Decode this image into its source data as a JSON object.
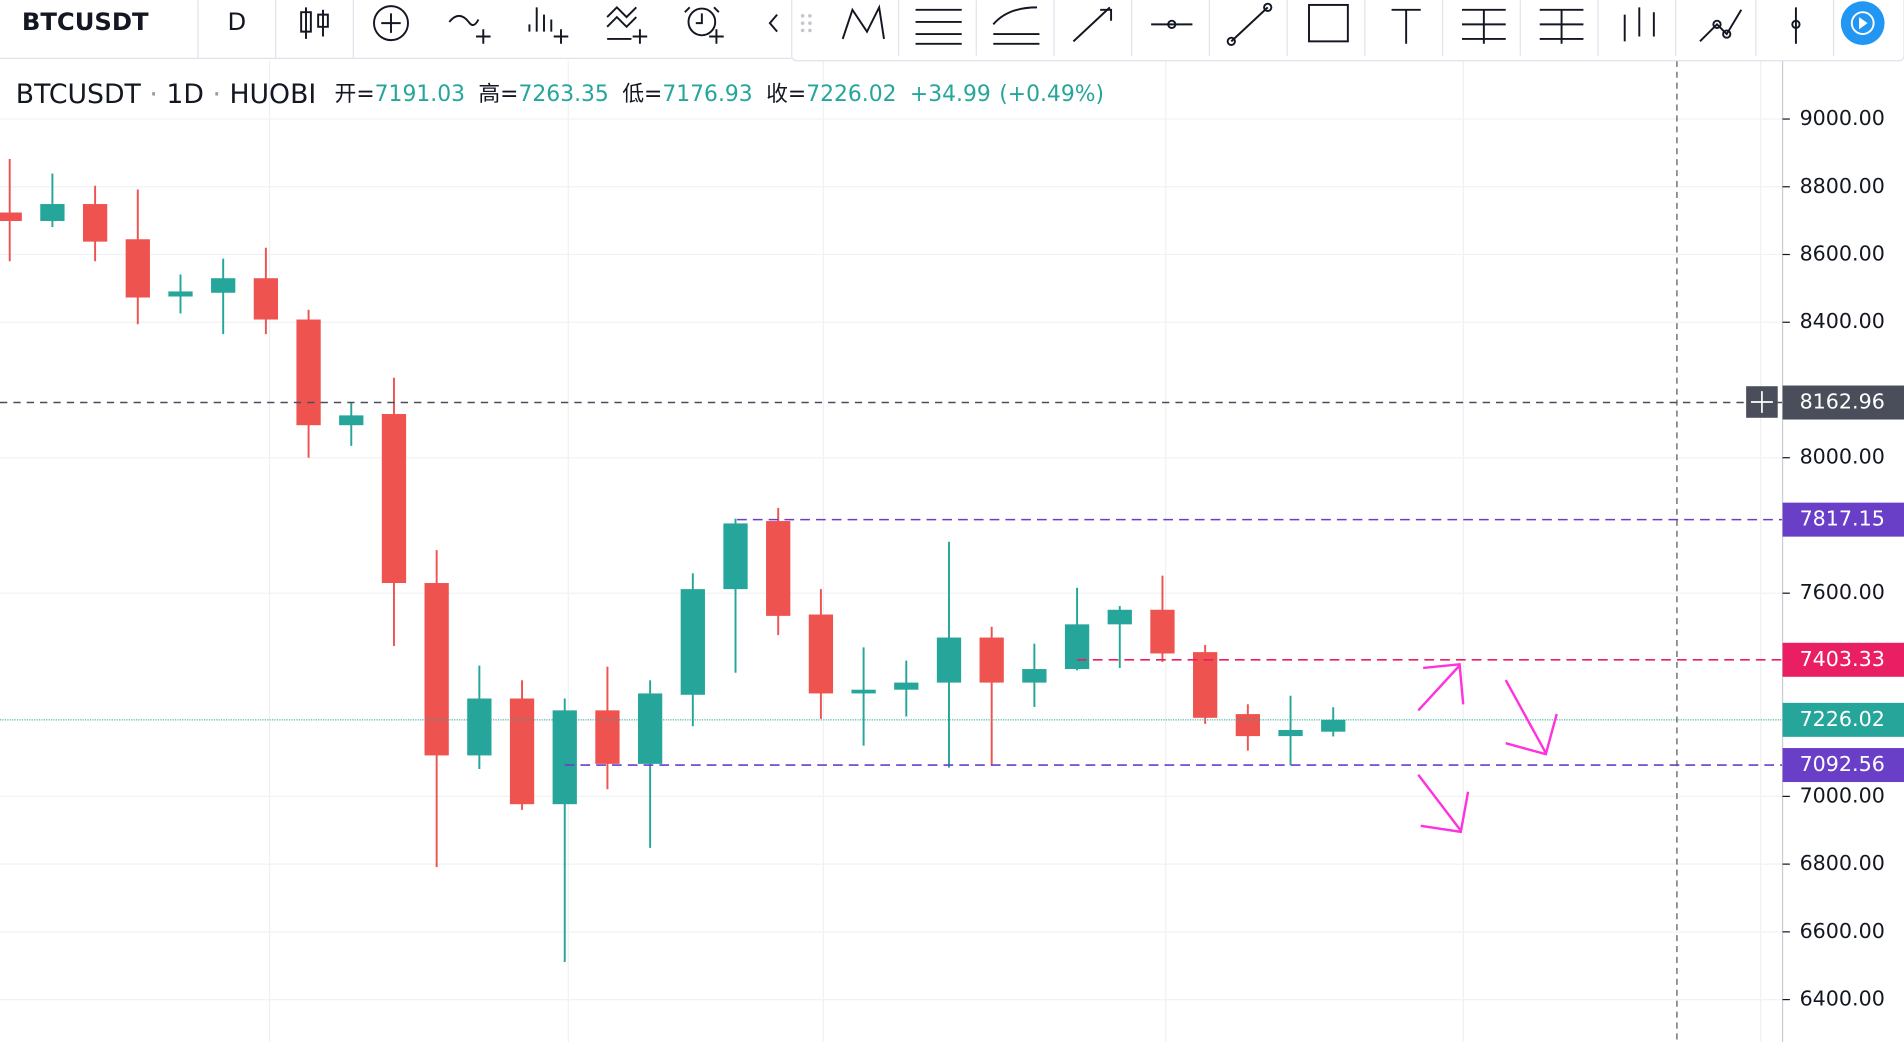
{
  "ui": {
    "symbol": "BTCUSDT",
    "interval": "D"
  },
  "chart_data": {
    "type": "candlestick",
    "legend": {
      "symbol": "BTCUSDT",
      "interval": "1D",
      "exchange": "HUOBI",
      "open_label": "开=",
      "high_label": "高=",
      "low_label": "低=",
      "close_label": "收=",
      "open": 7191.03,
      "high": 7263.35,
      "low": 7176.93,
      "close": 7226.02,
      "change": "+34.99",
      "change_pct": "(+0.49%)"
    },
    "open": [
      8724,
      8699,
      8749,
      8645,
      8476,
      8487,
      8530,
      8408,
      8096,
      8129,
      7630,
      7121,
      7289,
      6977,
      7254,
      7096,
      7300,
      7612,
      7813,
      7537,
      7304,
      7315,
      7336,
      7469,
      7336,
      7376,
      7508,
      7551,
      7426,
      7243,
      7178,
      7191.03
    ],
    "high": [
      8882,
      8839,
      8803,
      8792,
      8541,
      8588,
      8620,
      8437,
      8164,
      8236,
      7727,
      7386,
      7343,
      7289,
      7383,
      7343,
      7659,
      7820,
      7852,
      7612,
      7440,
      7401,
      7752,
      7501,
      7451,
      7616,
      7562,
      7652,
      7447,
      7272,
      7297,
      7263.35
    ],
    "low": [
      8580,
      8681,
      8580,
      8394,
      8426,
      8365,
      8365,
      8000,
      8035,
      7444,
      6791,
      7081,
      6960,
      6511,
      7021,
      6848,
      7207,
      7365,
      7476,
      7229,
      7150,
      7236,
      7085,
      7092,
      7264,
      7372,
      7379,
      7397,
      7214,
      7135,
      7092,
      7176.93
    ],
    "close": [
      8699,
      8749,
      8638,
      8473,
      8491,
      8530,
      8408,
      8096,
      8125,
      7630,
      7121,
      7289,
      6977,
      7254,
      7096,
      7304,
      7612,
      7806,
      7533,
      7304,
      7315,
      7336,
      7469,
      7336,
      7376,
      7508,
      7551,
      7422,
      7232,
      7178,
      7196,
      7226.02
    ],
    "up_color": "#26a69a",
    "down_color": "#ef5350",
    "ylim": [
      6275,
      9172
    ],
    "yticks": [
      {
        "value": 6400,
        "label": "6400.00"
      },
      {
        "value": 6600,
        "label": "6600.00"
      },
      {
        "value": 6800,
        "label": "6800.00"
      },
      {
        "value": 7000,
        "label": "7000.00"
      },
      {
        "value": 7600,
        "label": "7600.00"
      },
      {
        "value": 8000,
        "label": "8000.00"
      },
      {
        "value": 8400,
        "label": "8400.00"
      },
      {
        "value": 8600,
        "label": "8600.00"
      },
      {
        "value": 8800,
        "label": "8800.00"
      },
      {
        "value": 9000,
        "label": "9000.00"
      }
    ],
    "grid": true,
    "price_lines": [
      {
        "value": 8162.96,
        "color": "#4a4e5a"
      },
      {
        "value": 7817.15,
        "color": "#6a3fc8"
      },
      {
        "value": 7403.33,
        "color": "#e91e63"
      },
      {
        "value": 7226.02,
        "color": "#26a69a"
      },
      {
        "value": 7092.56,
        "color": "#6a3fc8"
      }
    ]
  }
}
